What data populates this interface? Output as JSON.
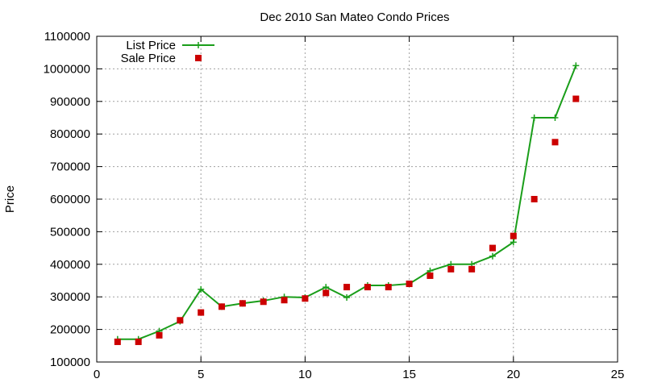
{
  "chart_data": {
    "type": "line",
    "title": "Dec 2010 San Mateo Condo Prices",
    "xlabel": "",
    "ylabel": "Price",
    "xlim": [
      0,
      25
    ],
    "ylim": [
      100000,
      1100000
    ],
    "x_ticks": [
      0,
      5,
      10,
      15,
      20,
      25
    ],
    "y_ticks": [
      100000,
      200000,
      300000,
      400000,
      500000,
      600000,
      700000,
      800000,
      900000,
      1000000,
      1100000
    ],
    "grid": true,
    "legend_position": "top-left",
    "series": [
      {
        "name": "List Price",
        "style": "lines+points",
        "color": "#1a9e1a",
        "marker": "plus",
        "x": [
          1,
          2,
          3,
          4,
          5,
          6,
          7,
          8,
          9,
          10,
          11,
          12,
          13,
          14,
          15,
          16,
          17,
          18,
          19,
          20,
          21,
          22,
          23
        ],
        "y": [
          170000,
          170000,
          195000,
          225000,
          323000,
          270000,
          280000,
          288000,
          300000,
          298000,
          330000,
          298000,
          335000,
          335000,
          340000,
          380000,
          400000,
          400000,
          425000,
          468000,
          850000,
          850000,
          1010000
        ]
      },
      {
        "name": "Sale Price",
        "style": "points",
        "color": "#cc0000",
        "marker": "square",
        "x": [
          1,
          2,
          3,
          4,
          5,
          6,
          7,
          8,
          9,
          10,
          11,
          12,
          13,
          14,
          15,
          16,
          17,
          18,
          19,
          20,
          21,
          22,
          23
        ],
        "y": [
          162000,
          162000,
          182000,
          228000,
          252000,
          270000,
          280000,
          285000,
          290000,
          295000,
          312000,
          330000,
          330000,
          330000,
          340000,
          365000,
          385000,
          385000,
          450000,
          487000,
          600000,
          775000,
          908000
        ]
      }
    ]
  }
}
